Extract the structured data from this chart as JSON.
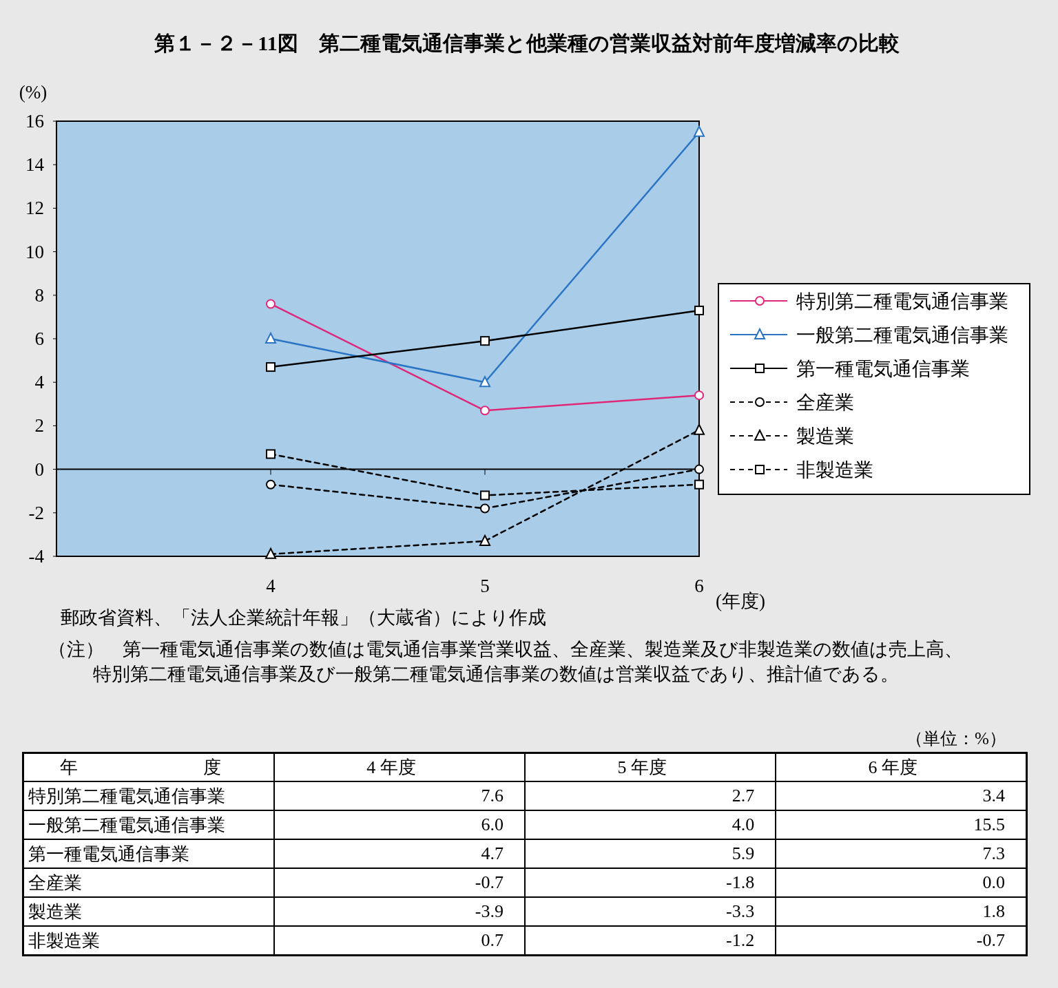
{
  "chart_data": [
    {
      "type": "line",
      "title": "第１－２－11図　第二種電気通信事業と他業種の営業収益対前年度増減率の比較",
      "ylabel": "(%)",
      "xlabel": "(年度)",
      "categories": [
        "4",
        "5",
        "6"
      ],
      "ylim": [
        -4,
        16
      ],
      "yticks": [
        -4,
        -2,
        0,
        2,
        4,
        6,
        8,
        10,
        12,
        14,
        16
      ],
      "grid": false,
      "legend": "right",
      "ref_lines": [
        {
          "axis": "y",
          "value": 0,
          "color": "#000000",
          "line_style": "solid"
        }
      ],
      "series": [
        {
          "name": "特別第二種電気通信事業",
          "color": "#e0287a",
          "marker": "circle",
          "line_style": "solid",
          "values": [
            7.6,
            2.7,
            3.4
          ]
        },
        {
          "name": "一般第二種電気通信事業",
          "color": "#2a74c4",
          "marker": "triangle",
          "line_style": "solid",
          "values": [
            6.0,
            4.0,
            15.5
          ]
        },
        {
          "name": "第一種電気通信事業",
          "color": "#000000",
          "marker": "square",
          "line_style": "solid",
          "values": [
            4.7,
            5.9,
            7.3
          ]
        },
        {
          "name": "全産業",
          "color": "#000000",
          "marker": "circle",
          "line_style": "dashed",
          "values": [
            -0.7,
            -1.8,
            0.0
          ]
        },
        {
          "name": "製造業",
          "color": "#000000",
          "marker": "triangle",
          "line_style": "dashed",
          "values": [
            -3.9,
            -3.3,
            1.8
          ]
        },
        {
          "name": "非製造業",
          "color": "#000000",
          "marker": "square",
          "line_style": "dashed",
          "values": [
            0.7,
            -1.2,
            -0.7
          ]
        }
      ],
      "annotations": [
        "郵政省資料、「法人企業統計年報」（大蔵省）により作成",
        "（注）　第一種電気通信事業の数値は電気通信事業営業収益、全産業、製造業及び非製造業の数値は売上高、特別第二種電気通信事業及び一般第二種電気通信事業の数値は営業収益であり、推計値である。"
      ]
    },
    {
      "type": "other",
      "ylabel": "年　　　　　　　度",
      "annotations": [
        "（単位：%）"
      ],
      "categories": [
        "4 年度",
        "5 年度",
        "6 年度"
      ],
      "y_categories": [
        "特別第二種電気通信事業",
        "一般第二種電気通信事業",
        "第一種電気通信事業",
        "全産業",
        "製造業",
        "非製造業"
      ],
      "cell_labels": [
        [
          "7.6",
          "2.7",
          "3.4"
        ],
        [
          "6.0",
          "4.0",
          "15.5"
        ],
        [
          "4.7",
          "5.9",
          "7.3"
        ],
        [
          "-0.7",
          "-1.8",
          "0.0"
        ],
        [
          "-3.9",
          "-3.3",
          "1.8"
        ],
        [
          "0.7",
          "-1.2",
          "-0.7"
        ]
      ]
    }
  ]
}
